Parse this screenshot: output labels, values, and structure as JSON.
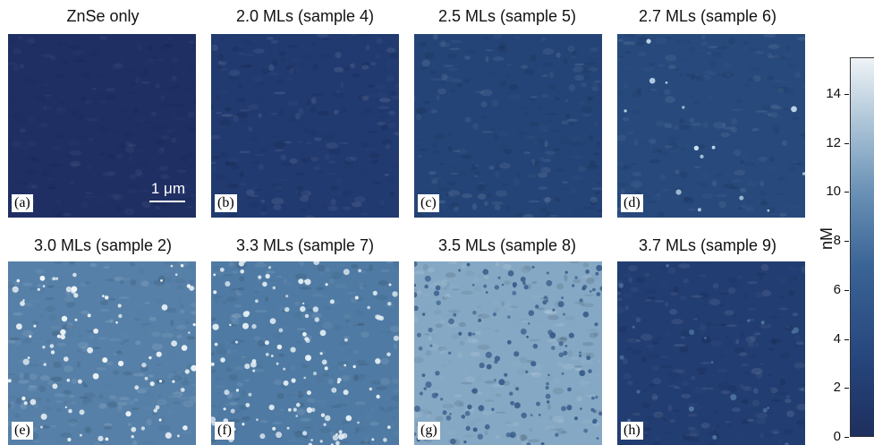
{
  "panels": [
    {
      "title": "ZnSe only",
      "letter": "(a)",
      "bg": "#1f2f64",
      "dots": 0,
      "dotColor": "#9fc0d8",
      "seed": 1,
      "tex": 0.15
    },
    {
      "title": "2.0 MLs (sample 4)",
      "letter": "(b)",
      "bg": "#213a70",
      "dots": 0,
      "dotColor": "#6f90b8",
      "seed": 2,
      "tex": 0.3
    },
    {
      "title": "2.5 MLs (sample 5)",
      "letter": "(c)",
      "bg": "#244477",
      "dots": 0,
      "dotColor": "#6f90b8",
      "seed": 3,
      "tex": 0.3
    },
    {
      "title": "2.7 MLs (sample 6)",
      "letter": "(d)",
      "bg": "#27497c",
      "dots": 14,
      "dotColor": "#c9e2ee",
      "seed": 4,
      "tex": 0.25
    },
    {
      "title": "3.0 MLs (sample 2)",
      "letter": "(e)",
      "bg": "#5680a8",
      "dots": 90,
      "dotColor": "#f4f8fa",
      "seed": 5,
      "tex": 0.35
    },
    {
      "title": "3.3 MLs (sample 7)",
      "letter": "(f)",
      "bg": "#4f7aa3",
      "dots": 130,
      "dotColor": "#e6f0f5",
      "seed": 6,
      "tex": 0.3
    },
    {
      "title": "3.5 MLs (sample 8)",
      "letter": "(g)",
      "bg": "#85a8c4",
      "dots": 160,
      "dotColor": "#3b5f8c",
      "seed": 7,
      "tex": 0.35
    },
    {
      "title": "3.7 MLs (sample 9)",
      "letter": "(h)",
      "bg": "#223d72",
      "dots": 20,
      "dotColor": "#4d74a0",
      "seed": 8,
      "tex": 0.3
    }
  ],
  "scalebar": {
    "label": "1 μm"
  },
  "colorbar": {
    "unit": "nM",
    "ticks": [
      "0",
      "2",
      "4",
      "6",
      "8",
      "10",
      "12",
      "14"
    ],
    "max": 15.5
  }
}
